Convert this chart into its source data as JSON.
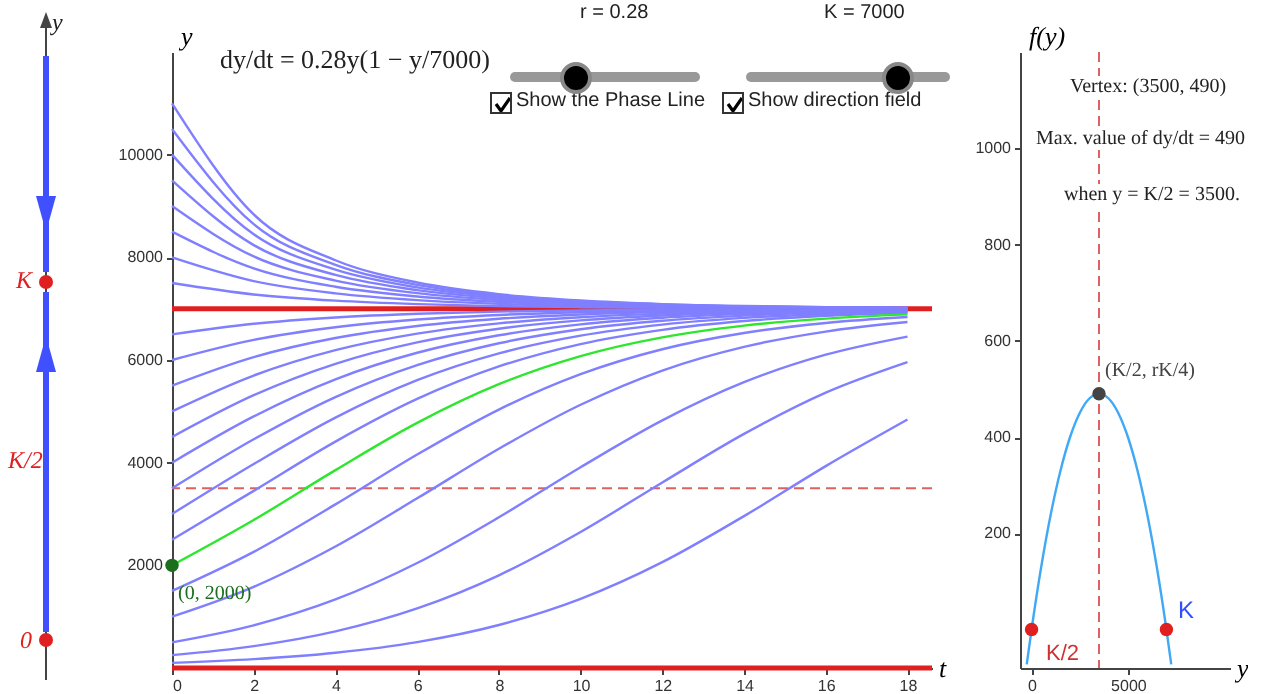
{
  "chart_data": [
    {
      "type": "other",
      "annotations": [
        "y",
        "K",
        "K/2",
        "0"
      ]
    },
    {
      "type": "line",
      "xlabel": "t",
      "ylabel": "y",
      "x": [
        0,
        2,
        4,
        6,
        8,
        10,
        12,
        14,
        16,
        18
      ],
      "xlim": [
        0,
        18.6
      ],
      "xticks": [
        0,
        2,
        4,
        6,
        8,
        10,
        12,
        14,
        16,
        18
      ],
      "ylim": [
        0,
        12000
      ],
      "yticks": [
        2000,
        4000,
        6000,
        8000,
        10000
      ],
      "series": [
        {
          "color": "#7f7fff",
          "values": [
            100,
            173,
            298,
            505,
            838,
            1347,
            2062,
            2959,
            3933,
            4840
          ]
        },
        {
          "color": "#7f7fff",
          "values": [
            250,
            426,
            714,
            1161,
            1806,
            2650,
            3614,
            4560,
            5364,
            5959
          ]
        },
        {
          "color": "#7f7fff",
          "values": [
            500,
            831,
            1335,
            2045,
            2936,
            3911,
            4824,
            5567,
            6103,
            6457
          ]
        },
        {
          "color": "#7f7fff",
          "values": [
            1000,
            1581,
            2366,
            3305,
            4271,
            5128,
            5795,
            6256,
            6554,
            6739
          ]
        },
        {
          "color": "#7f7fff",
          "values": [
            1500,
            2262,
            3187,
            4158,
            5034,
            5724,
            6210,
            6526,
            6722,
            6838
          ]
        },
        {
          "color": "#7f7fff",
          "values": [
            2500,
            3451,
            4410,
            5241,
            5874,
            6310,
            6588,
            6759,
            6861,
            6920
          ]
        },
        {
          "color": "#7f7fff",
          "values": [
            3000,
            3974,
            4878,
            5607,
            6130,
            6475,
            6690,
            6820,
            6896,
            6940
          ]
        },
        {
          "color": "#7f7fff",
          "values": [
            3500,
            4455,
            5278,
            5900,
            6326,
            6599,
            6765,
            6864,
            6922,
            6955
          ]
        },
        {
          "color": "#7f7fff",
          "values": [
            4000,
            4901,
            5624,
            6141,
            6482,
            6695,
            6823,
            6898,
            6941,
            6966
          ]
        },
        {
          "color": "#7f7fff",
          "values": [
            4500,
            5314,
            5926,
            6343,
            6609,
            6771,
            6867,
            6924,
            6956,
            6975
          ]
        },
        {
          "color": "#7f7fff",
          "values": [
            5000,
            5698,
            6192,
            6514,
            6714,
            6834,
            6904,
            6945,
            6969,
            6982
          ]
        },
        {
          "color": "#7f7fff",
          "values": [
            5500,
            6056,
            6428,
            6662,
            6803,
            6886,
            6934,
            6962,
            6978,
            6987
          ]
        },
        {
          "color": "#7f7fff",
          "values": [
            6000,
            6392,
            6639,
            6789,
            6878,
            6930,
            6960,
            6977,
            6987,
            6992
          ]
        },
        {
          "color": "#7f7fff",
          "values": [
            6500,
            6706,
            6829,
            6901,
            6943,
            6967,
            6981,
            6990,
            6994,
            6997
          ]
        },
        {
          "color": "#7f7fff",
          "values": [
            7500,
            7277,
            7156,
            7088,
            7050,
            7029,
            7016,
            7009,
            7005,
            7003
          ]
        },
        {
          "color": "#7f7fff",
          "values": [
            8000,
            7538,
            7298,
            7167,
            7094,
            7054,
            7030,
            7018,
            7010,
            7006
          ]
        },
        {
          "color": "#7f7fff",
          "values": [
            8500,
            7785,
            7428,
            7238,
            7134,
            7076,
            7043,
            7025,
            7014,
            7008
          ]
        },
        {
          "color": "#7f7fff",
          "values": [
            9000,
            8017,
            7547,
            7302,
            7170,
            7096,
            7054,
            7031,
            7018,
            7010
          ]
        },
        {
          "color": "#7f7fff",
          "values": [
            9500,
            8238,
            7658,
            7361,
            7202,
            7114,
            7064,
            7037,
            7021,
            7012
          ]
        },
        {
          "color": "#7f7fff",
          "values": [
            10000,
            8448,
            7760,
            7414,
            7231,
            7130,
            7074,
            7042,
            7024,
            7013
          ]
        },
        {
          "color": "#7f7fff",
          "values": [
            10500,
            8646,
            7855,
            7464,
            7258,
            7145,
            7082,
            7047,
            7027,
            7015
          ]
        },
        {
          "color": "#7f7fff",
          "values": [
            11000,
            8835,
            7943,
            7509,
            7282,
            7158,
            7089,
            7051,
            7029,
            7017
          ]
        },
        {
          "color": "#2ee62e",
          "values": [
            2000,
            2883,
            3855,
            4775,
            5528,
            6076,
            6441,
            6670,
            6807,
            6888
          ]
        },
        {
          "type": "scatter",
          "color": "#1b6e1b",
          "x": [
            0
          ],
          "values": [
            2000
          ]
        }
      ],
      "ref_lines": [
        {
          "axis": "y",
          "value": 7000,
          "color": "#e02020",
          "line_style": "solid"
        },
        {
          "axis": "y",
          "value": 0,
          "color": "#e02020",
          "line_style": "solid"
        },
        {
          "axis": "y",
          "value": 3500,
          "color": "#e06060",
          "line_style": "dashed"
        }
      ],
      "annotations": [
        {
          "text": "(0, 2000)",
          "x": 0,
          "y": 2000
        },
        "dy/dt = 0.28y(1 − y/7000)",
        "r = 0.28",
        "K = 7000",
        "Show the Phase Line",
        "Show direction field"
      ]
    },
    {
      "type": "line",
      "xlabel": "y",
      "ylabel": "f(y)",
      "x": [
        -250,
        0,
        500,
        1000,
        1500,
        2000,
        2500,
        3000,
        3500,
        4000,
        4500,
        5000,
        5500,
        6000,
        6500,
        7000,
        7250
      ],
      "xlim": [
        -600,
        10300
      ],
      "xticks": [
        0,
        5000
      ],
      "ylim": [
        -80,
        1200
      ],
      "yticks": [
        200,
        400,
        600,
        800,
        1000
      ],
      "series": [
        {
          "color": "#3fa9f5",
          "values": [
            -72.5,
            0,
            130,
            240,
            330,
            400,
            450,
            480,
            490,
            480,
            450,
            400,
            330,
            240,
            130,
            0,
            -72.5
          ]
        },
        {
          "type": "scatter",
          "color": "#444444",
          "x": [
            3500
          ],
          "values": [
            490
          ]
        },
        {
          "type": "scatter",
          "color": "#e02020",
          "x": [
            0,
            7000
          ],
          "values": [
            0,
            0
          ]
        }
      ],
      "ref_lines": [
        {
          "axis": "x",
          "value": 3500,
          "color": "#e06060",
          "line_style": "dashed"
        }
      ],
      "annotations": [
        {
          "text": "(K/2, rK/4)",
          "x": 3500,
          "y": 490
        },
        "Vertex: (3500, 490)",
        "Max. value of dy/dt = 490",
        "when y = K/2 = 3500.",
        "K/2",
        "K"
      ]
    }
  ]
}
